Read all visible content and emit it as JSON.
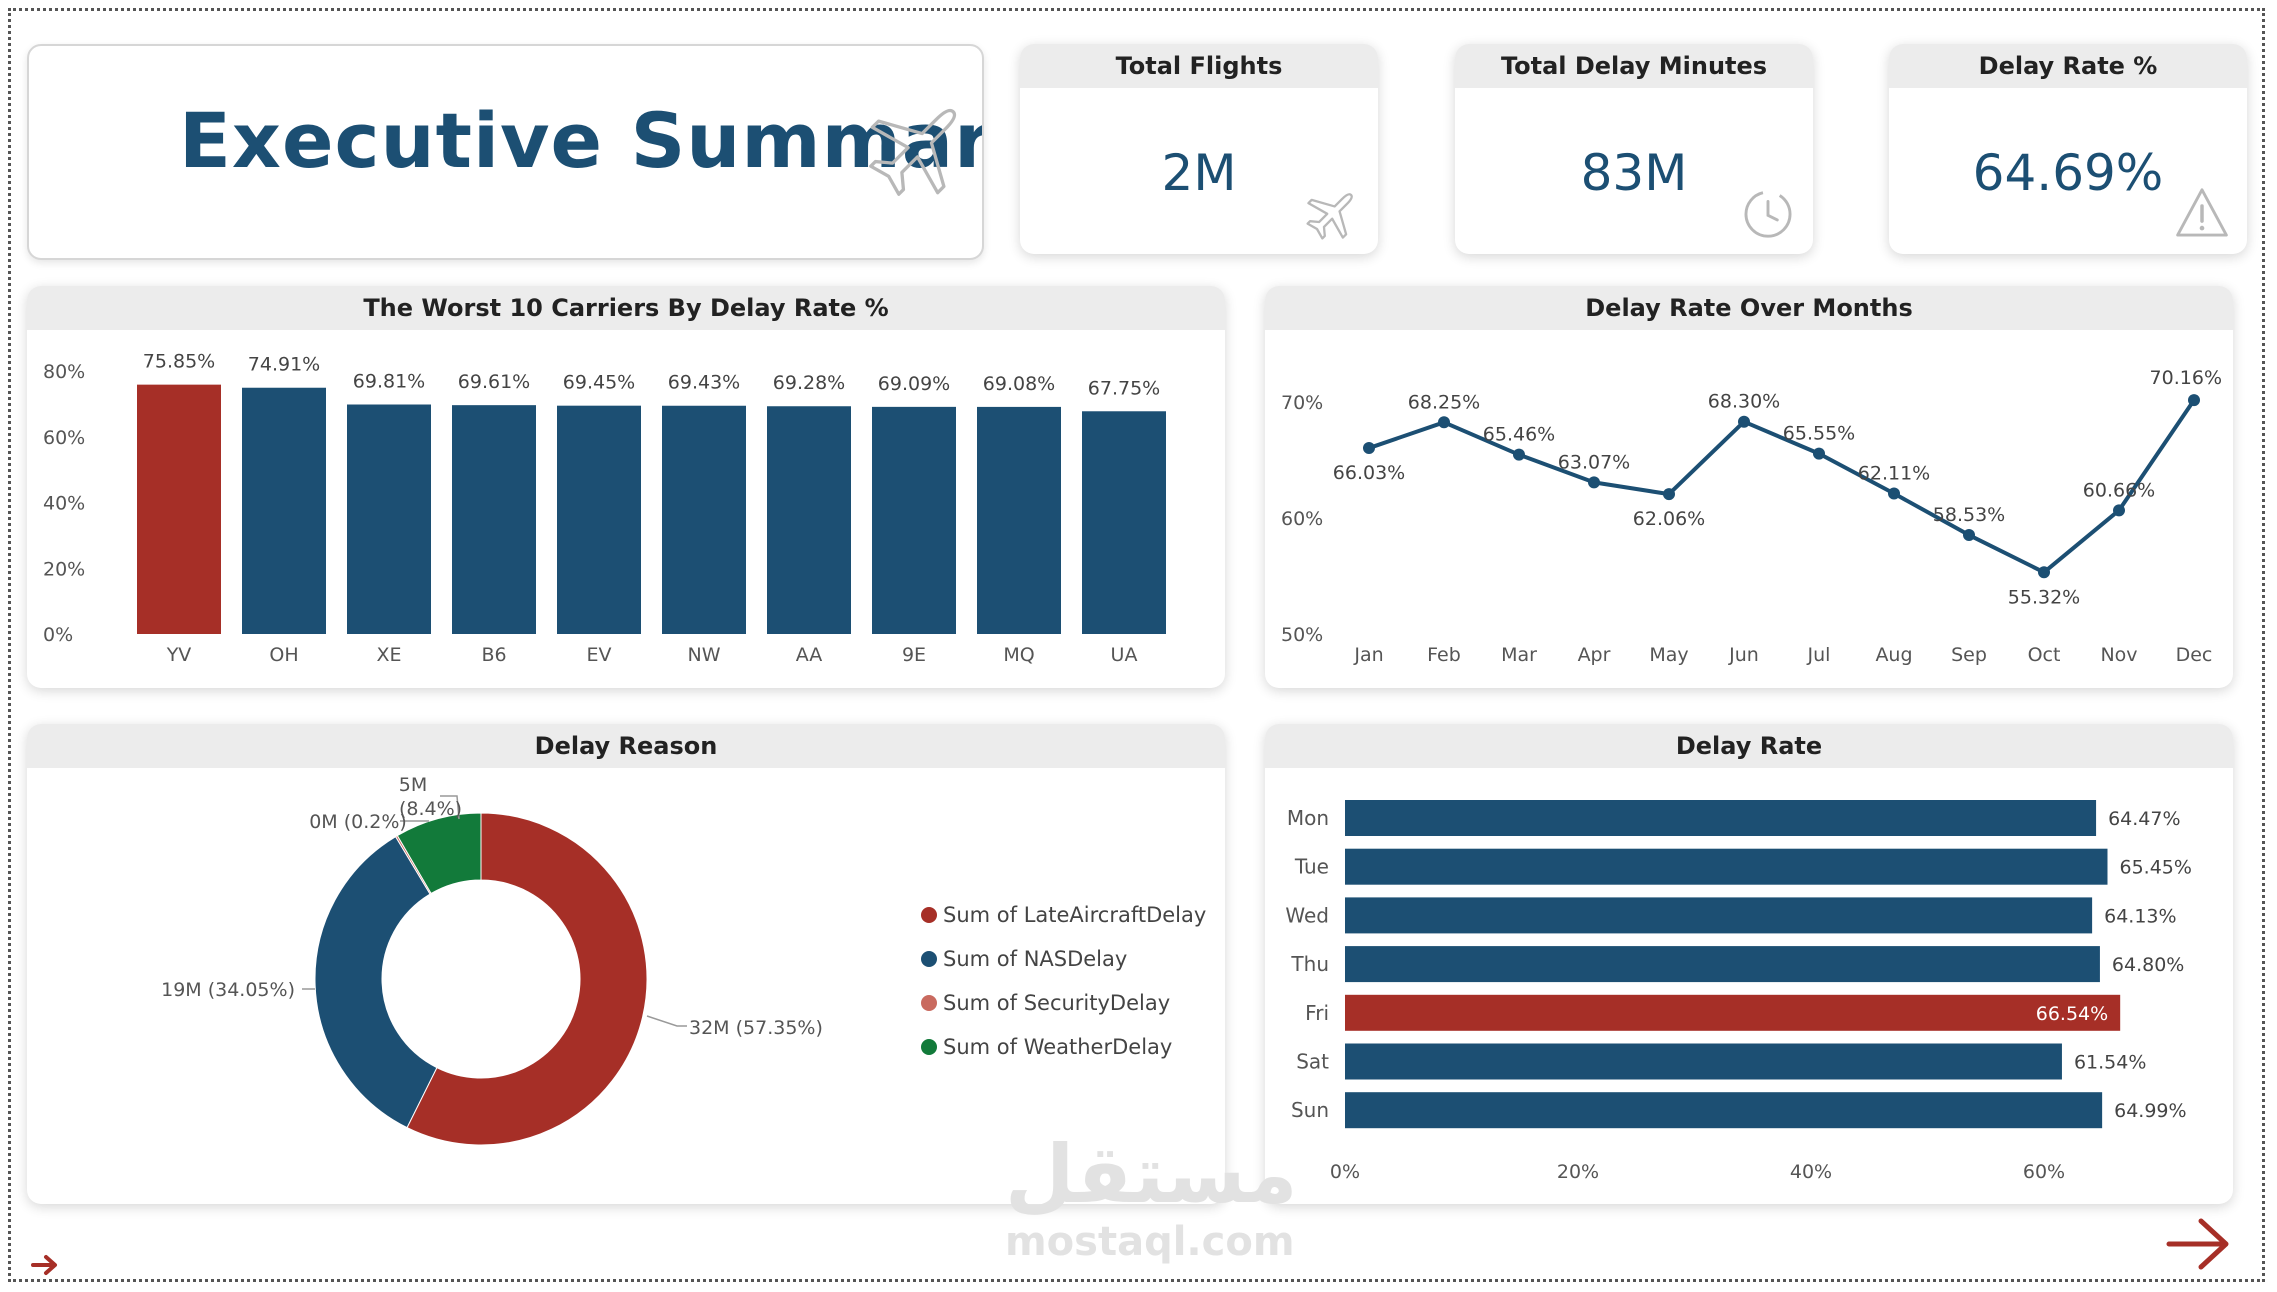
{
  "title": "Executive Summary",
  "kpis": [
    {
      "label": "Total Flights",
      "value": "2M",
      "icon": "airplane-icon"
    },
    {
      "label": "Total Delay Minutes",
      "value": "83M",
      "icon": "clock-icon"
    },
    {
      "label": "Delay Rate %",
      "value": "64.69%",
      "icon": "warning-icon"
    }
  ],
  "watermark": {
    "arabic": "مستقل",
    "latin": "mostaql.com"
  },
  "colors": {
    "primary": "#1c4f73",
    "highlight": "#a62f27",
    "nas": "#1c4f73",
    "late": "#a62f27",
    "security": "#c96a5f",
    "weather": "#127a3a"
  },
  "chart_data": [
    {
      "type": "bar",
      "title": "The Worst 10 Carriers By Delay Rate %",
      "categories": [
        "YV",
        "OH",
        "XE",
        "B6",
        "EV",
        "NW",
        "AA",
        "9E",
        "MQ",
        "UA"
      ],
      "values": [
        75.85,
        74.91,
        69.81,
        69.61,
        69.45,
        69.43,
        69.28,
        69.09,
        69.08,
        67.75
      ],
      "labels": [
        "75.85%",
        "74.91%",
        "69.81%",
        "69.61%",
        "69.45%",
        "69.43%",
        "69.28%",
        "69.09%",
        "69.08%",
        "67.75%"
      ],
      "highlight_index": 0,
      "ylim": [
        0,
        80
      ],
      "yticks": [
        "0%",
        "20%",
        "40%",
        "60%",
        "80%"
      ]
    },
    {
      "type": "line",
      "title": "Delay Rate Over Months",
      "categories": [
        "Jan",
        "Feb",
        "Mar",
        "Apr",
        "May",
        "Jun",
        "Jul",
        "Aug",
        "Sep",
        "Oct",
        "Nov",
        "Dec"
      ],
      "values": [
        66.03,
        68.25,
        65.46,
        63.07,
        62.06,
        68.3,
        65.55,
        62.11,
        58.53,
        55.32,
        60.66,
        70.16
      ],
      "labels": [
        "66.03%",
        "68.25%",
        "65.46%",
        "63.07%",
        "62.06%",
        "68.30%",
        "65.55%",
        "62.11%",
        "58.53%",
        "55.32%",
        "60.66%",
        "70.16%"
      ],
      "ylim": [
        50,
        72
      ],
      "yticks": [
        "50%",
        "60%",
        "70%"
      ]
    },
    {
      "type": "pie",
      "title": "Delay Reason",
      "slices": [
        {
          "name": "Sum of LateAircraftDelay",
          "value": 57.35,
          "label": "32M (57.35%)"
        },
        {
          "name": "Sum of NASDelay",
          "value": 34.05,
          "label": "19M (34.05%)"
        },
        {
          "name": "Sum of SecurityDelay",
          "value": 0.2,
          "label": "0M (0.2%)"
        },
        {
          "name": "Sum of WeatherDelay",
          "value": 8.4,
          "label_line1": "5M",
          "label_line2": "(8.4%)"
        }
      ]
    },
    {
      "type": "bar",
      "orientation": "horizontal",
      "title": "Delay Rate",
      "categories": [
        "Mon",
        "Tue",
        "Wed",
        "Thu",
        "Fri",
        "Sat",
        "Sun"
      ],
      "values": [
        64.47,
        65.45,
        64.13,
        64.8,
        66.54,
        61.54,
        64.99
      ],
      "labels": [
        "64.47%",
        "65.45%",
        "64.13%",
        "64.80%",
        "66.54%",
        "61.54%",
        "64.99%"
      ],
      "highlight_index": 4,
      "xlim": [
        0,
        70
      ],
      "xticks": [
        "0%",
        "20%",
        "40%",
        "60%"
      ]
    }
  ]
}
